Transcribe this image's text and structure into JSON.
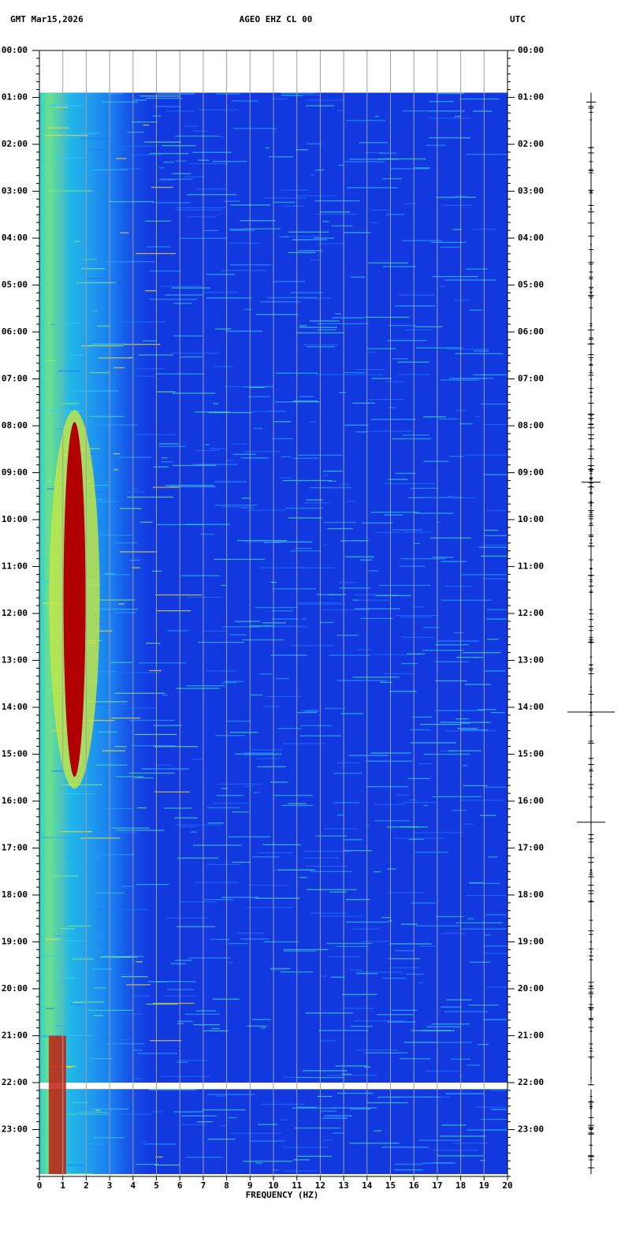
{
  "chart_data": {
    "type": "spectrogram",
    "header_left": "GMT  Mar15,2026",
    "title": "AGEO EHZ CL 00",
    "header_right": "UTC",
    "xlabel": "FREQUENCY (HZ)",
    "xlim": [
      0,
      20
    ],
    "xticks": [
      0,
      1,
      2,
      3,
      4,
      5,
      6,
      7,
      8,
      9,
      10,
      11,
      12,
      13,
      14,
      15,
      16,
      17,
      18,
      19,
      20
    ],
    "ylim": [
      0,
      24
    ],
    "yticks": [
      {
        "value": 0,
        "label": "00:00"
      },
      {
        "value": 1,
        "label": "01:00"
      },
      {
        "value": 2,
        "label": "02:00"
      },
      {
        "value": 3,
        "label": "03:00"
      },
      {
        "value": 4,
        "label": "04:00"
      },
      {
        "value": 5,
        "label": "05:00"
      },
      {
        "value": 6,
        "label": "06:00"
      },
      {
        "value": 7,
        "label": "07:00"
      },
      {
        "value": 8,
        "label": "08:00"
      },
      {
        "value": 9,
        "label": "09:00"
      },
      {
        "value": 10,
        "label": "10:00"
      },
      {
        "value": 11,
        "label": "11:00"
      },
      {
        "value": 12,
        "label": "12:00"
      },
      {
        "value": 13,
        "label": "13:00"
      },
      {
        "value": 14,
        "label": "14:00"
      },
      {
        "value": 15,
        "label": "15:00"
      },
      {
        "value": 16,
        "label": "16:00"
      },
      {
        "value": 17,
        "label": "17:00"
      },
      {
        "value": 18,
        "label": "18:00"
      },
      {
        "value": 19,
        "label": "19:00"
      },
      {
        "value": 20,
        "label": "20:00"
      },
      {
        "value": 21,
        "label": "21:00"
      },
      {
        "value": 22,
        "label": "22:00"
      },
      {
        "value": 23,
        "label": "23:00"
      }
    ],
    "grid": true
  }
}
